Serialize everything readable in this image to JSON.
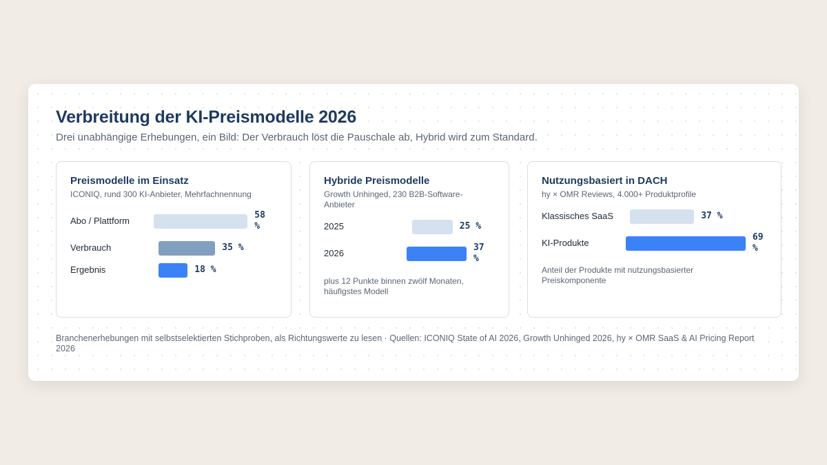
{
  "header": {
    "title": "Verbreitung der KI-Preismodelle 2026",
    "subtitle": "Drei unabhängige Erhebungen, ein Bild: Der Verbrauch löst die Pauschale ab, Hybrid wird zum Standard."
  },
  "colors": {
    "light": "#d5e1ef",
    "mid": "#839fc0",
    "accent": "#3b82f6"
  },
  "chart_data": [
    {
      "type": "bar",
      "title": "Preismodelle im Einsatz",
      "subtitle": "ICONIQ, rund 300 KI-Anbieter, Mehrfachnennung",
      "categories": [
        "Abo / Plattform",
        "Verbrauch",
        "Ergebnis"
      ],
      "values": [
        58,
        35,
        18
      ],
      "value_labels": [
        "58 %",
        "35 %",
        "18 %"
      ],
      "unit": "%",
      "bar_colors": [
        "#d5e1ef",
        "#839fc0",
        "#3b82f6"
      ],
      "note": ""
    },
    {
      "type": "bar",
      "title": "Hybride Preismodelle",
      "subtitle": "Growth Unhinged, 230 B2B-Software-Anbieter",
      "categories": [
        "2025",
        "2026"
      ],
      "values": [
        25,
        37
      ],
      "value_labels": [
        "25 %",
        "37 %"
      ],
      "unit": "%",
      "bar_colors": [
        "#d5e1ef",
        "#3b82f6"
      ],
      "note": "plus 12 Punkte binnen zwölf Monaten, häufigstes Modell"
    },
    {
      "type": "bar",
      "title": "Nutzungsbasiert in DACH",
      "subtitle": "hy × OMR Reviews, 4.000+ Produktprofile",
      "categories": [
        "Klassisches SaaS",
        "KI-Produkte"
      ],
      "values": [
        37,
        69
      ],
      "value_labels": [
        "37 %",
        "69 %"
      ],
      "unit": "%",
      "bar_colors": [
        "#d5e1ef",
        "#3b82f6"
      ],
      "note": "Anteil der Produkte mit nutzungsbasierter Preiskomponente"
    }
  ],
  "footer": {
    "text": "Branchenerhebungen mit selbstselektierten Stichproben, als Richtungswerte zu lesen · Quellen: ICONIQ State of AI 2026, Growth Unhinged 2026, hy × OMR SaaS & AI Pricing Report 2026"
  }
}
